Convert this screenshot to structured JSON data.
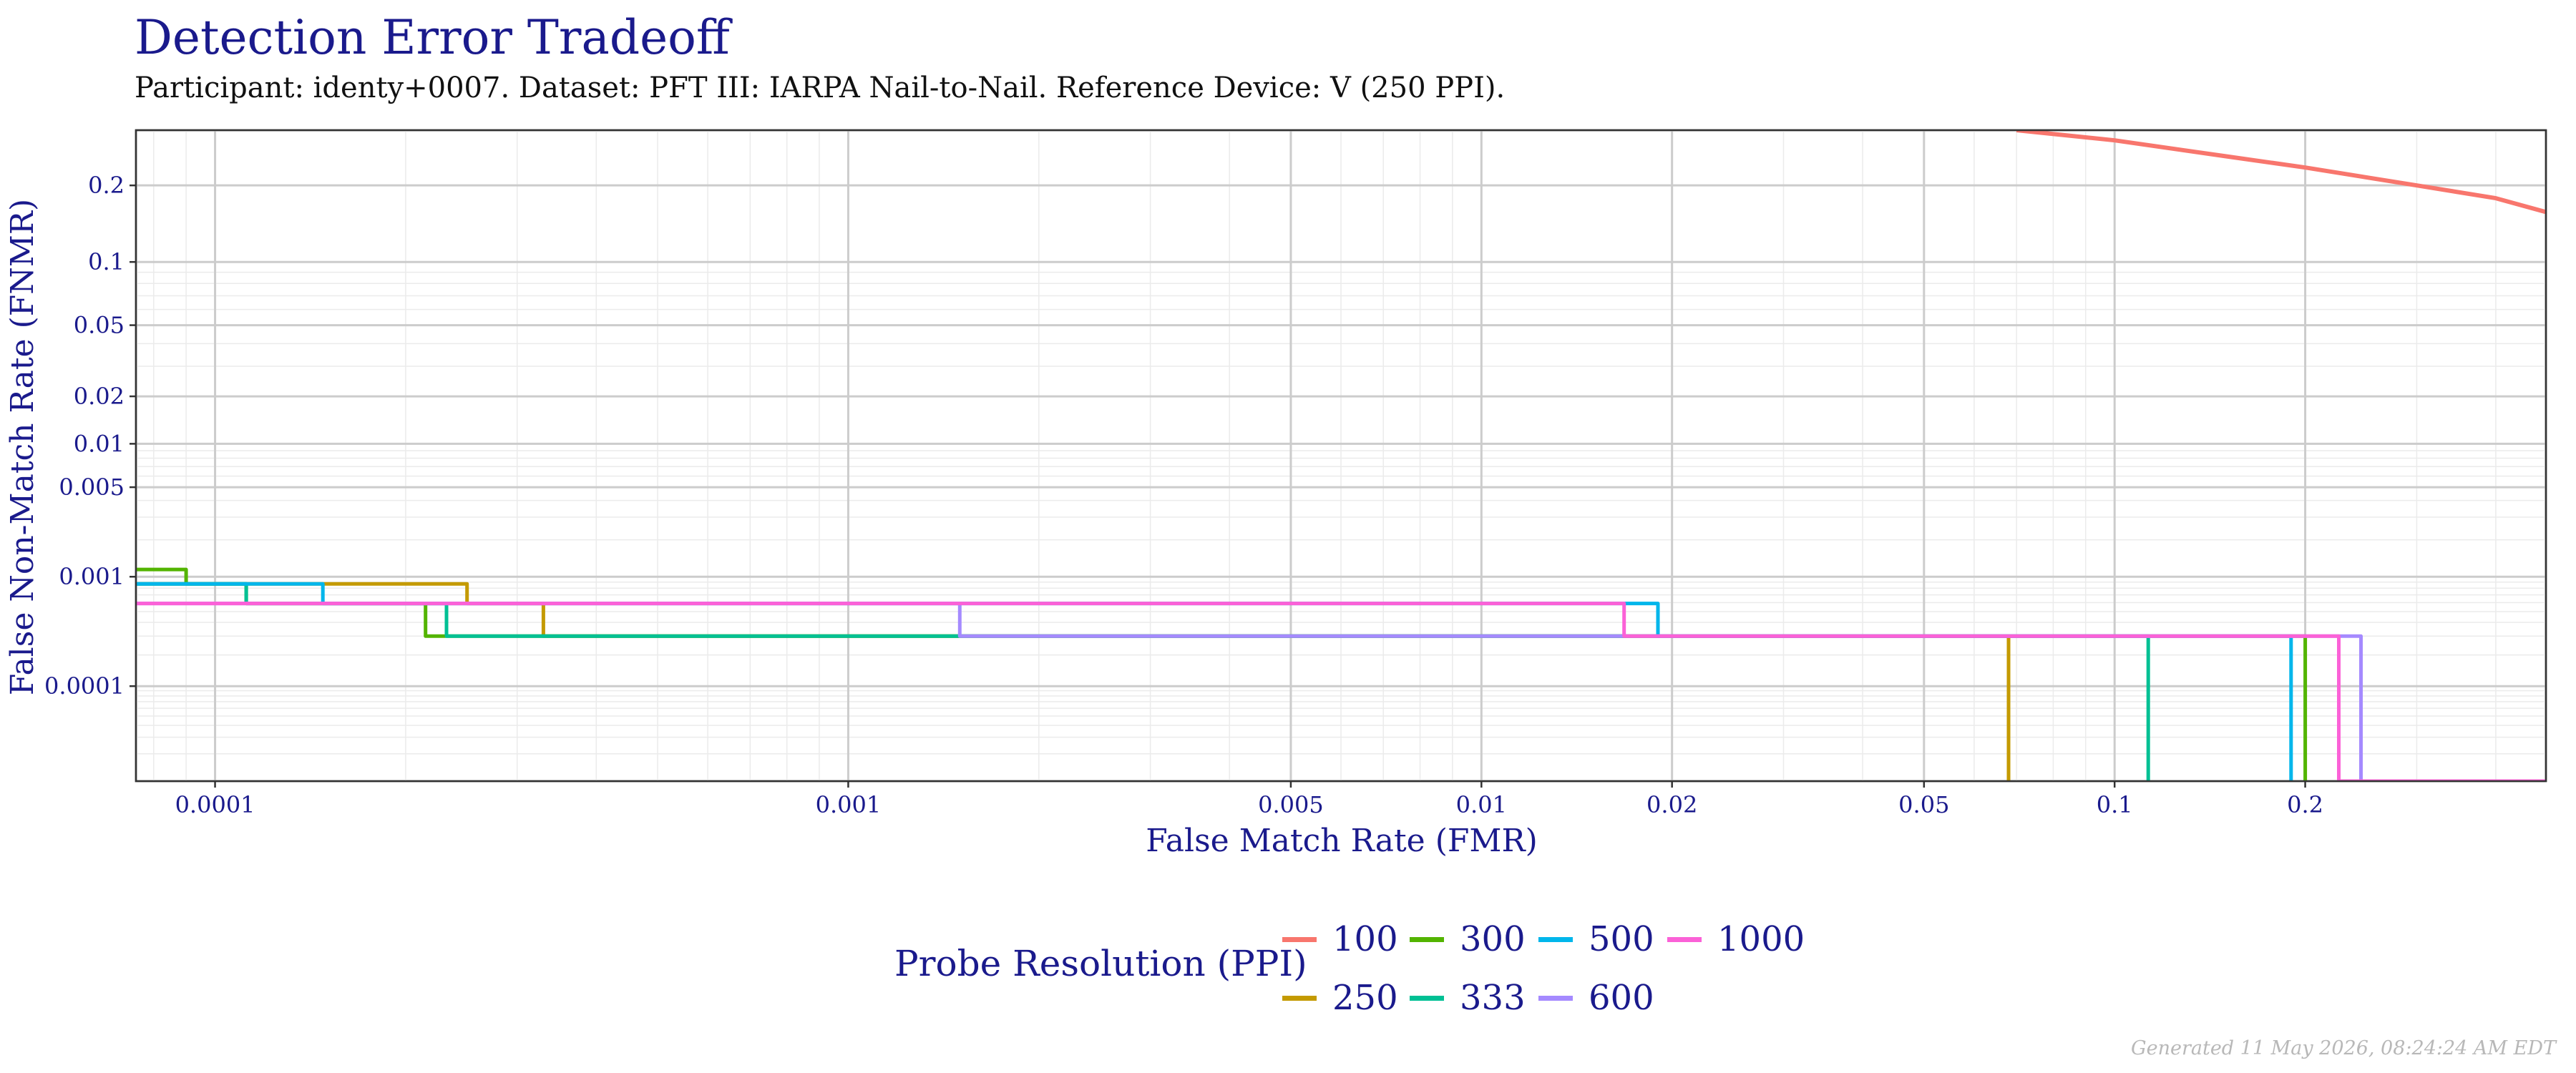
{
  "chart_data": {
    "type": "line",
    "title": "Detection Error Tradeoff",
    "subtitle": "Participant: identy+0007. Dataset: PFT III: IARPA Nail-to-Nail. Reference Device: V (250 PPI).",
    "xlabel": "False Match Rate (FMR)",
    "ylabel": "False Non-Match Rate (FNMR)",
    "x_scale": "log",
    "y_scale": "probit",
    "xlim": [
      7.5e-05,
      0.48
    ],
    "ylim": [
      1e-05,
      0.3
    ],
    "x_ticks": [
      {
        "value": 0.0001,
        "label": "0.0001"
      },
      {
        "value": 0.001,
        "label": "0.001"
      },
      {
        "value": 0.005,
        "label": "0.005"
      },
      {
        "value": 0.01,
        "label": "0.01"
      },
      {
        "value": 0.02,
        "label": "0.02"
      },
      {
        "value": 0.05,
        "label": "0.05"
      },
      {
        "value": 0.1,
        "label": "0.1"
      },
      {
        "value": 0.2,
        "label": "0.2"
      }
    ],
    "y_ticks": [
      {
        "value": 0.2,
        "label": "0.2"
      },
      {
        "value": 0.1,
        "label": "0.1"
      },
      {
        "value": 0.05,
        "label": "0.05"
      },
      {
        "value": 0.02,
        "label": "0.02"
      },
      {
        "value": 0.01,
        "label": "0.01"
      },
      {
        "value": 0.005,
        "label": "0.005"
      },
      {
        "value": 0.001,
        "label": "0.001"
      },
      {
        "value": 0.0001,
        "label": "0.0001"
      }
    ],
    "grid": true,
    "legend": {
      "title": "Probe Resolution (PPI)",
      "position": "bottom"
    },
    "series": [
      {
        "name": "100",
        "color": "#F8766D",
        "step": false,
        "points": [
          [
            0.07,
            0.3
          ],
          [
            0.1,
            0.28
          ],
          [
            0.15,
            0.25
          ],
          [
            0.2,
            0.23
          ],
          [
            0.3,
            0.2
          ],
          [
            0.4,
            0.18
          ],
          [
            0.48,
            0.16
          ]
        ]
      },
      {
        "name": "250",
        "color": "#C49A00",
        "step": true,
        "points": [
          [
            7.5e-05,
            0.00087
          ],
          [
            0.00025,
            0.00087
          ],
          [
            0.00025,
            0.00059
          ],
          [
            0.00033,
            0.00059
          ],
          [
            0.00033,
            0.0003
          ],
          [
            0.068,
            0.0003
          ],
          [
            0.068,
            1e-05
          ]
        ]
      },
      {
        "name": "300",
        "color": "#53B400",
        "step": true,
        "points": [
          [
            7.5e-05,
            0.00115
          ],
          [
            9e-05,
            0.00115
          ],
          [
            9e-05,
            0.00087
          ],
          [
            0.000112,
            0.00087
          ],
          [
            0.000112,
            0.00059
          ],
          [
            0.000215,
            0.00059
          ],
          [
            0.000215,
            0.0003
          ],
          [
            0.2,
            0.0003
          ],
          [
            0.2,
            1e-05
          ]
        ]
      },
      {
        "name": "333",
        "color": "#00C094",
        "step": true,
        "points": [
          [
            7.5e-05,
            0.00087
          ],
          [
            0.000112,
            0.00087
          ],
          [
            0.000112,
            0.00059
          ],
          [
            0.000232,
            0.00059
          ],
          [
            0.000232,
            0.0003
          ],
          [
            0.113,
            0.0003
          ],
          [
            0.113,
            1e-05
          ]
        ]
      },
      {
        "name": "500",
        "color": "#00B6EB",
        "step": true,
        "points": [
          [
            7.5e-05,
            0.00087
          ],
          [
            0.000148,
            0.00087
          ],
          [
            0.000148,
            0.00059
          ],
          [
            0.019,
            0.00059
          ],
          [
            0.019,
            0.0003
          ],
          [
            0.19,
            0.0003
          ],
          [
            0.19,
            1e-05
          ]
        ]
      },
      {
        "name": "600",
        "color": "#A58AFF",
        "step": true,
        "points": [
          [
            7.5e-05,
            0.00059
          ],
          [
            0.0015,
            0.00059
          ],
          [
            0.0015,
            0.0003
          ],
          [
            0.245,
            0.0003
          ],
          [
            0.245,
            1e-05
          ],
          [
            0.48,
            1e-05
          ]
        ]
      },
      {
        "name": "1000",
        "color": "#FB61D7",
        "step": true,
        "points": [
          [
            7.5e-05,
            0.00059
          ],
          [
            0.0168,
            0.00059
          ],
          [
            0.0168,
            0.0003
          ],
          [
            0.226,
            0.0003
          ],
          [
            0.226,
            1e-05
          ],
          [
            0.48,
            1e-05
          ]
        ]
      }
    ]
  },
  "footer": "Generated 11 May 2026, 08:24:24 AM EDT"
}
